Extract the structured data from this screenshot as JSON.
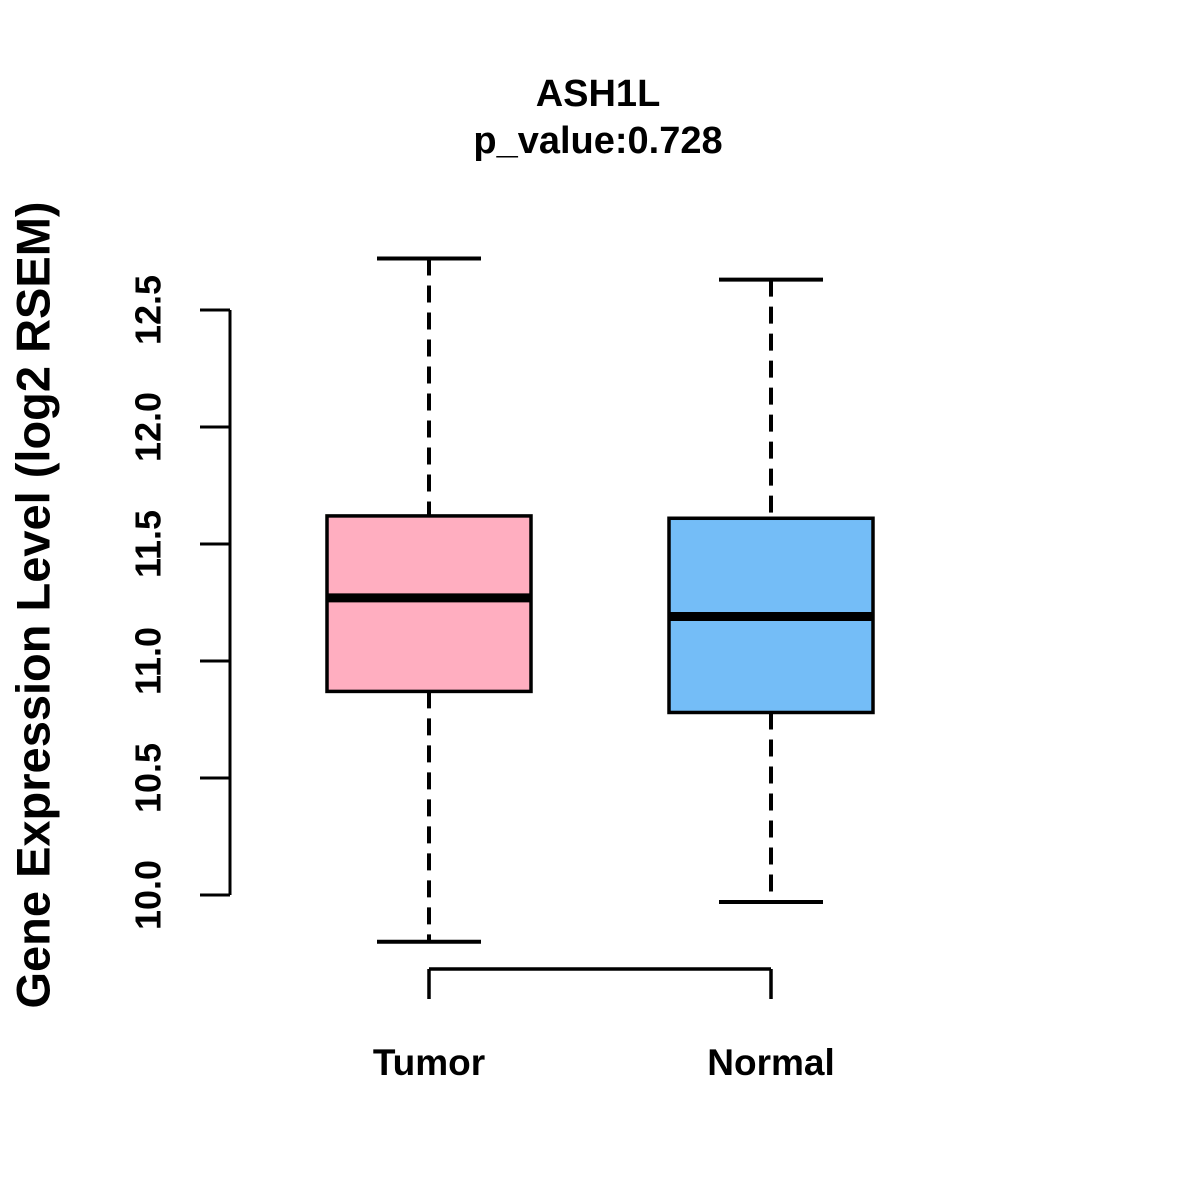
{
  "chart": {
    "title": "ASH1L",
    "subtitle": "p_value:0.728",
    "ylabel": "Gene Expression Level (log2 RSEM)"
  },
  "chart_data": {
    "type": "boxplot",
    "title": "ASH1L",
    "subtitle": "p_value:0.728",
    "xlabel": "",
    "ylabel": "Gene Expression Level (log2 RSEM)",
    "ylim": [
      9.8,
      12.72
    ],
    "yticks": [
      "10.0",
      "10.5",
      "11.0",
      "11.5",
      "12.0",
      "12.5"
    ],
    "grid": false,
    "legend": "none",
    "categories": [
      "Tumor",
      "Normal"
    ],
    "groups": [
      {
        "label": "Tumor",
        "color": "#FFAEC0",
        "whisker_low": 9.8,
        "q1": 10.87,
        "median": 11.27,
        "q3": 11.62,
        "whisker_high": 12.72
      },
      {
        "label": "Normal",
        "color": "#74BDF7",
        "whisker_low": 9.97,
        "q1": 10.78,
        "median": 11.19,
        "q3": 11.61,
        "whisker_high": 12.63
      }
    ]
  },
  "colors": {
    "tumor_fill": "#FFAEC0",
    "normal_fill": "#74BDF7",
    "line": "#000000",
    "background": "#FFFFFF"
  }
}
